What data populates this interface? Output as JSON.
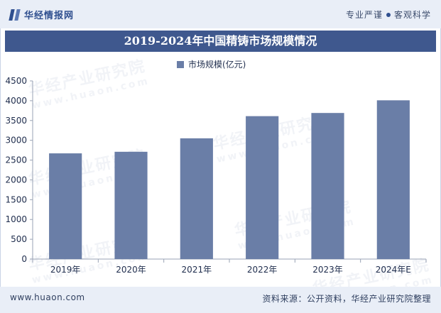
{
  "header": {
    "brand_name": "华经情报网",
    "slogan_left": "专业严谨",
    "slogan_right": "客观科学"
  },
  "watermark": {
    "text": "华经产业研究院",
    "url": "www.huaon.com"
  },
  "footer": {
    "url": "www.huaon.com",
    "source": "资料来源：公开资料，华经产业研究院整理"
  },
  "colors": {
    "bar": "#6a7ea7",
    "title_bar": "#3f588e",
    "header_bg": "#e9eef7"
  },
  "chart_data": {
    "type": "bar",
    "title": "2019-2024年中国精铸市场规模情况",
    "categories": [
      "2019年",
      "2020年",
      "2021年",
      "2022年",
      "2023年",
      "2024年E"
    ],
    "series": [
      {
        "name": "市场规模(亿元)",
        "values": [
          2670,
          2710,
          3050,
          3610,
          3690,
          4010
        ]
      }
    ],
    "ylim": [
      0,
      4500
    ],
    "yticks": [
      0,
      500,
      1000,
      1500,
      2000,
      2500,
      3000,
      3500,
      4000,
      4500
    ],
    "xlabel": "",
    "ylabel": "",
    "legend_position": "top",
    "grid": false
  }
}
